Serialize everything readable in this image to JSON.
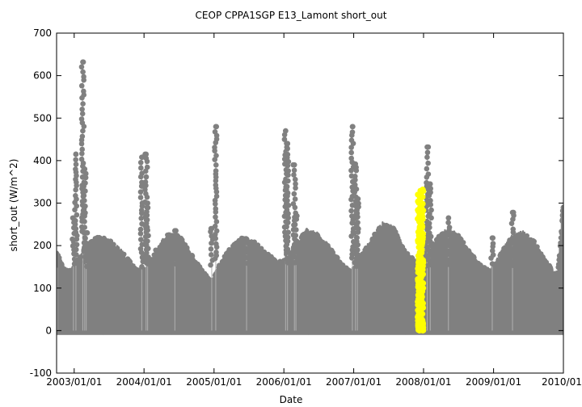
{
  "chart_data": {
    "type": "scatter",
    "title": "CEOP CPPA1SGP E13_Lamont  short_out",
    "xlabel": "Date",
    "ylabel": "short_out (W/m^2)",
    "xlim": [
      "2002-10-01",
      "2010-01-01"
    ],
    "ylim": [
      -100,
      700
    ],
    "yticks": [
      -100,
      0,
      100,
      200,
      300,
      400,
      500,
      600,
      700
    ],
    "xticks": [
      "2003/01/01",
      "2004/01/01",
      "2005/01/01",
      "2006/01/01",
      "2007/01/01",
      "2008/01/01",
      "2009/01/01",
      "2010/01/0"
    ],
    "grid": false,
    "series": [
      {
        "color": "#808080",
        "daily_minimum": 0,
        "daily_maximum_envelope": [
          [
            "2002-10-01",
            175
          ],
          [
            "2002-11-15",
            140
          ],
          [
            "2002-12-15",
            135
          ],
          [
            "2003-01-15",
            150
          ],
          [
            "2003-03-01",
            190
          ],
          [
            "2003-05-01",
            210
          ],
          [
            "2003-07-01",
            205
          ],
          [
            "2003-09-01",
            180
          ],
          [
            "2003-11-01",
            150
          ],
          [
            "2003-12-15",
            135
          ],
          [
            "2004-01-20",
            140
          ],
          [
            "2004-03-01",
            180
          ],
          [
            "2004-05-01",
            215
          ],
          [
            "2004-07-01",
            215
          ],
          [
            "2004-09-01",
            175
          ],
          [
            "2004-11-01",
            135
          ],
          [
            "2004-12-20",
            110
          ],
          [
            "2005-02-01",
            150
          ],
          [
            "2005-04-01",
            190
          ],
          [
            "2005-06-01",
            210
          ],
          [
            "2005-08-01",
            200
          ],
          [
            "2005-10-01",
            175
          ],
          [
            "2005-12-01",
            155
          ],
          [
            "2006-01-15",
            160
          ],
          [
            "2006-03-01",
            195
          ],
          [
            "2006-05-01",
            225
          ],
          [
            "2006-07-01",
            215
          ],
          [
            "2006-09-01",
            185
          ],
          [
            "2006-11-01",
            150
          ],
          [
            "2006-12-20",
            130
          ],
          [
            "2007-02-01",
            160
          ],
          [
            "2007-04-01",
            205
          ],
          [
            "2007-06-01",
            240
          ],
          [
            "2007-08-01",
            230
          ],
          [
            "2007-10-01",
            175
          ],
          [
            "2007-12-01",
            155
          ],
          [
            "2008-01-20",
            185
          ],
          [
            "2008-03-01",
            205
          ],
          [
            "2008-05-01",
            225
          ],
          [
            "2008-07-01",
            215
          ],
          [
            "2008-09-01",
            175
          ],
          [
            "2008-11-01",
            145
          ],
          [
            "2008-12-20",
            135
          ],
          [
            "2009-02-01",
            170
          ],
          [
            "2009-04-01",
            210
          ],
          [
            "2009-06-01",
            220
          ],
          [
            "2009-08-01",
            200
          ],
          [
            "2009-10-01",
            155
          ],
          [
            "2009-12-01",
            125
          ],
          [
            "2010-01-01",
            290
          ]
        ],
        "spikes": [
          [
            "2002-10-05",
            175
          ],
          [
            "2002-12-28",
            265
          ],
          [
            "2003-01-10",
            415
          ],
          [
            "2003-02-15",
            632
          ],
          [
            "2003-02-25",
            380
          ],
          [
            "2003-03-05",
            230
          ],
          [
            "2003-12-20",
            408
          ],
          [
            "2004-01-12",
            415
          ],
          [
            "2004-01-20",
            300
          ],
          [
            "2004-06-10",
            235
          ],
          [
            "2004-12-20",
            240
          ],
          [
            "2005-01-10",
            480
          ],
          [
            "2005-06-20",
            215
          ],
          [
            "2006-01-10",
            470
          ],
          [
            "2006-01-20",
            440
          ],
          [
            "2006-02-25",
            390
          ],
          [
            "2006-03-05",
            270
          ],
          [
            "2006-12-25",
            480
          ],
          [
            "2007-01-10",
            392
          ],
          [
            "2007-01-20",
            310
          ],
          [
            "2008-01-20",
            432
          ],
          [
            "2008-02-05",
            345
          ],
          [
            "2008-05-10",
            265
          ],
          [
            "2008-12-25",
            218
          ],
          [
            "2009-04-10",
            278
          ],
          [
            "2010-01-01",
            290
          ]
        ]
      },
      {
        "color": "#ffff00",
        "date_range": [
          "2007-12-01",
          "2007-12-31"
        ],
        "max": 335,
        "min": 0
      }
    ]
  }
}
